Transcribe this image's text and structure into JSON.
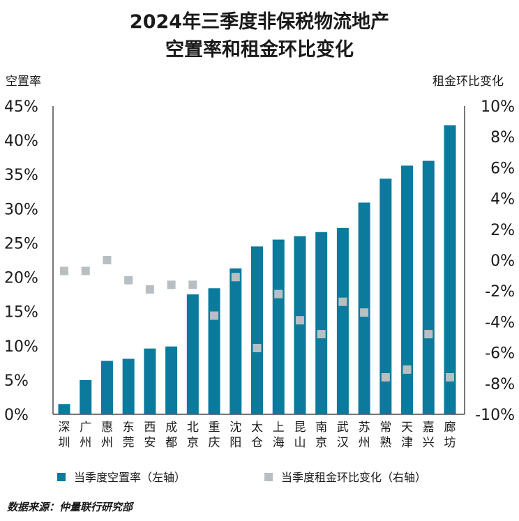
{
  "chart_data": {
    "type": "bar",
    "title_lines": [
      "2024年三季度非保税物流地产",
      "空置率和租金环比变化"
    ],
    "ylabel_left": "空置率",
    "ylabel_right": "租金环比变化",
    "categories": [
      [
        "深",
        "圳"
      ],
      [
        "广",
        "州"
      ],
      [
        "惠",
        "州"
      ],
      [
        "东",
        "莞"
      ],
      [
        "西",
        "安"
      ],
      [
        "成",
        "都"
      ],
      [
        "北",
        "京"
      ],
      [
        "重",
        "庆"
      ],
      [
        "沈",
        "阳"
      ],
      [
        "太",
        "仓"
      ],
      [
        "上",
        "海"
      ],
      [
        "昆",
        "山"
      ],
      [
        "南",
        "京"
      ],
      [
        "武",
        "汉"
      ],
      [
        "苏",
        "州"
      ],
      [
        "常",
        "熟"
      ],
      [
        "天",
        "津"
      ],
      [
        "嘉",
        "兴"
      ],
      [
        "廊",
        "坊"
      ]
    ],
    "left_axis": {
      "min": 0,
      "max": 45,
      "step": 5,
      "tick_labels": [
        "0%",
        "5%",
        "10%",
        "15%",
        "20%",
        "25%",
        "30%",
        "35%",
        "40%",
        "45%"
      ]
    },
    "right_axis": {
      "min": -10,
      "max": 10,
      "step": 2,
      "tick_labels": [
        "-10%",
        "-8%",
        "-6%",
        "-4%",
        "-2%",
        "0%",
        "2%",
        "4%",
        "6%",
        "8%",
        "10%"
      ]
    },
    "series": [
      {
        "name": "当季度空置率（左轴）",
        "kind": "bar",
        "axis": "left",
        "color": "#0b7a9c",
        "values": [
          1.5,
          5.0,
          7.8,
          8.1,
          9.6,
          9.9,
          17.5,
          18.4,
          21.3,
          24.5,
          25.5,
          26.0,
          26.6,
          27.2,
          30.9,
          34.4,
          36.3,
          37.0,
          42.2
        ]
      },
      {
        "name": "当季度租金环比变化（右轴）",
        "kind": "marker",
        "axis": "right",
        "color": "#b8bfc2",
        "values": [
          -0.7,
          -0.7,
          0.0,
          -1.3,
          -1.9,
          -1.6,
          -1.6,
          -3.6,
          -1.1,
          -5.7,
          -2.2,
          -3.9,
          -4.8,
          -2.7,
          -3.4,
          -7.6,
          -7.1,
          -4.8,
          -7.6
        ]
      }
    ],
    "grid": false,
    "legend_position": "bottom"
  },
  "source": "数据来源：仲量联行研究部"
}
